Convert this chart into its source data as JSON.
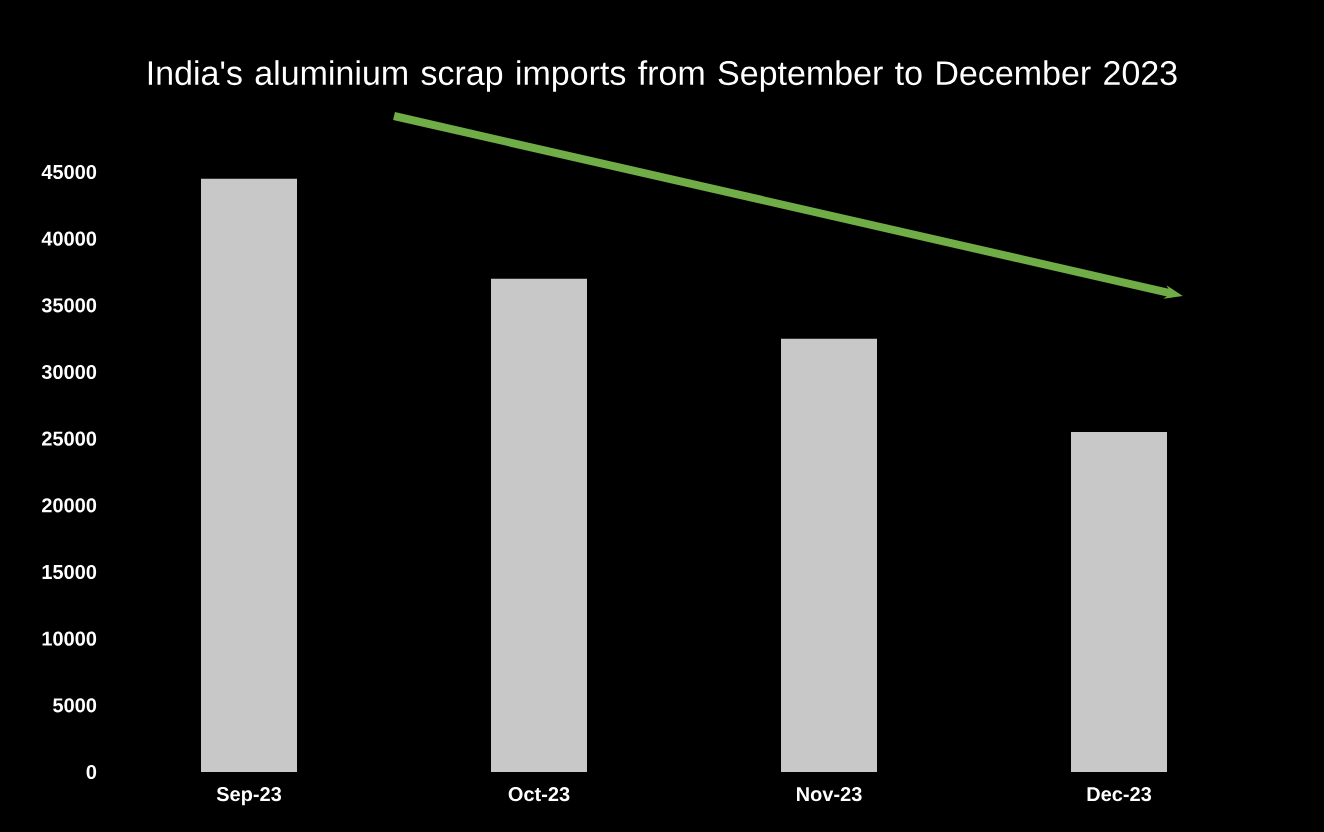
{
  "chart_data": {
    "type": "bar",
    "title": "India's aluminium scrap imports from September to December 2023",
    "categories": [
      "Sep-23",
      "Oct-23",
      "Nov-23",
      "Dec-23"
    ],
    "values": [
      44500,
      37000,
      32500,
      25500
    ],
    "color": "#c8c8c8",
    "ylim": [
      0,
      45000
    ],
    "yticks": [
      0,
      5000,
      10000,
      15000,
      20000,
      25000,
      30000,
      35000,
      40000,
      45000
    ]
  }
}
